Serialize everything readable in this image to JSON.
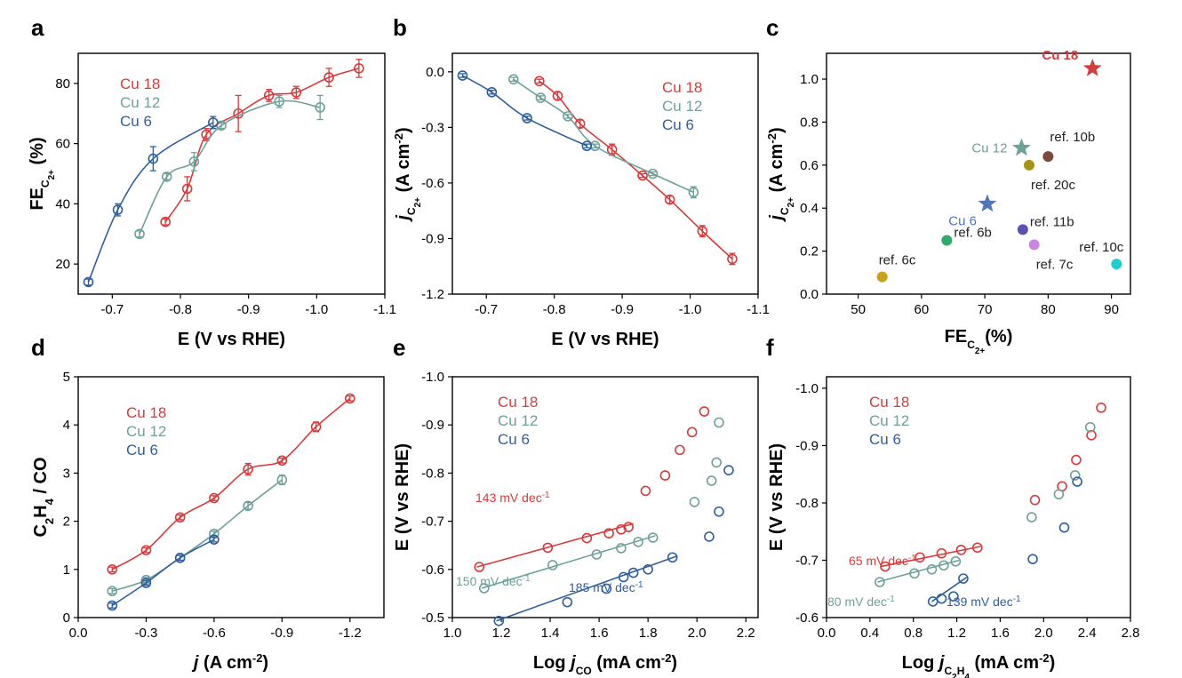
{
  "colors": {
    "cu18": "#d93a3a",
    "cu12": "#6ea19a",
    "cu6": "#2f5f9e"
  },
  "chart_data": [
    {
      "id": "a",
      "type": "line",
      "panel_label": "a",
      "xlabel": "E (V vs RHE)",
      "ylabel_main": "FE",
      "ylabel_sub": "C2+",
      "ylabel_unit": "(%)",
      "xlim": [
        -0.65,
        -1.1
      ],
      "ylim": [
        10,
        90
      ],
      "xticks": [
        -0.7,
        -0.8,
        -0.9,
        -1.0,
        -1.1
      ],
      "xtick_labels": [
        "-0.7",
        "-0.8",
        "-0.9",
        "-1.0",
        "-1.1"
      ],
      "yticks": [
        20,
        40,
        60,
        80
      ],
      "ytick_labels": [
        "20",
        "40",
        "60",
        "80"
      ],
      "legend": [
        "Cu 18",
        "Cu 12",
        "Cu 6"
      ],
      "series": [
        {
          "name": "Cu 18",
          "color": "cu18",
          "x": [
            -0.778,
            -0.81,
            -0.838,
            -0.885,
            -0.93,
            -0.97,
            -1.018,
            -1.062
          ],
          "y": [
            34,
            45,
            63,
            70,
            76,
            77,
            82,
            85
          ],
          "err": [
            1,
            4,
            2,
            6,
            2,
            2,
            3,
            3
          ]
        },
        {
          "name": "Cu 12",
          "color": "cu12",
          "x": [
            -0.74,
            -0.78,
            -0.82,
            -0.86,
            -0.945,
            -1.005
          ],
          "y": [
            30,
            49,
            54,
            66,
            74,
            72
          ],
          "err": [
            1,
            1,
            3,
            1,
            2,
            4
          ]
        },
        {
          "name": "Cu 6",
          "color": "cu6",
          "x": [
            -0.665,
            -0.708,
            -0.76,
            -0.848
          ],
          "y": [
            14,
            38,
            55,
            67
          ],
          "err": [
            1,
            2,
            4,
            2
          ]
        }
      ]
    },
    {
      "id": "b",
      "type": "line",
      "panel_label": "b",
      "xlabel": "E (V vs RHE)",
      "ylabel_main": "j",
      "ylabel_sub": "C2+",
      "ylabel_unit": "(A cm-2)",
      "xlim": [
        -0.65,
        -1.1
      ],
      "ylim": [
        -1.2,
        0.1
      ],
      "xticks": [
        -0.7,
        -0.8,
        -0.9,
        -1.0,
        -1.1
      ],
      "xtick_labels": [
        "-0.7",
        "-0.8",
        "-0.9",
        "-1.0",
        "-1.1"
      ],
      "yticks": [
        0.0,
        -0.3,
        -0.6,
        -0.9,
        -1.2
      ],
      "ytick_labels": [
        "0.0",
        "-0.3",
        "-0.6",
        "-0.9",
        "-1.2"
      ],
      "legend": [
        "Cu 18",
        "Cu 12",
        "Cu 6"
      ],
      "series": [
        {
          "name": "Cu 18",
          "color": "cu18",
          "x": [
            -0.778,
            -0.805,
            -0.838,
            -0.885,
            -0.93,
            -0.97,
            -1.018,
            -1.062
          ],
          "y": [
            -0.05,
            -0.13,
            -0.28,
            -0.42,
            -0.56,
            -0.69,
            -0.86,
            -1.01
          ],
          "err": [
            0.01,
            0.02,
            0.02,
            0.03,
            0.01,
            0.02,
            0.03,
            0.03
          ]
        },
        {
          "name": "Cu 12",
          "color": "cu12",
          "x": [
            -0.74,
            -0.78,
            -0.82,
            -0.86,
            -0.945,
            -1.005
          ],
          "y": [
            -0.04,
            -0.14,
            -0.24,
            -0.4,
            -0.55,
            -0.65
          ],
          "err": [
            0.01,
            0.01,
            0.01,
            0.01,
            0.01,
            0.03
          ]
        },
        {
          "name": "Cu 6",
          "color": "cu6",
          "x": [
            -0.665,
            -0.708,
            -0.76,
            -0.848
          ],
          "y": [
            -0.02,
            -0.11,
            -0.25,
            -0.4
          ],
          "err": [
            0.01,
            0.01,
            0.01,
            0.01
          ]
        }
      ]
    },
    {
      "id": "c",
      "type": "scatter",
      "panel_label": "c",
      "xlabel_main": "FE",
      "xlabel_sub": "C2+",
      "xlabel_unit": "(%)",
      "ylabel_main": "j",
      "ylabel_sub": "C2+",
      "ylabel_unit": "(A cm-2)",
      "xlim": [
        45,
        93
      ],
      "ylim": [
        0,
        1.12
      ],
      "xticks": [
        50,
        60,
        70,
        80,
        90
      ],
      "xtick_labels": [
        "50",
        "60",
        "70",
        "80",
        "90"
      ],
      "yticks": [
        0.0,
        0.2,
        0.4,
        0.6,
        0.8,
        1.0
      ],
      "ytick_labels": [
        "0.0",
        "0.2",
        "0.4",
        "0.6",
        "0.8",
        "1.0"
      ],
      "points": [
        {
          "label": "Cu 18",
          "x": 87,
          "y": 1.05,
          "color": "#d93a3a",
          "marker": "star",
          "label_pos": "left"
        },
        {
          "label": "Cu 12",
          "x": 75.8,
          "y": 0.68,
          "color": "#6ea19a",
          "marker": "star",
          "label_pos": "left"
        },
        {
          "label": "Cu 6",
          "x": 70.4,
          "y": 0.42,
          "color": "#4f77b8",
          "marker": "star",
          "label_pos": "below-left"
        },
        {
          "label": "ref. 10b",
          "x": 80,
          "y": 0.64,
          "color": "#7a4a3a",
          "marker": "circle",
          "label_pos": "above-right"
        },
        {
          "label": "ref. 20c",
          "x": 77,
          "y": 0.6,
          "color": "#a89414",
          "marker": "circle",
          "label_pos": "below"
        },
        {
          "label": "ref. 11b",
          "x": 76,
          "y": 0.3,
          "color": "#5a52b5",
          "marker": "circle",
          "label_pos": "above-right"
        },
        {
          "label": "ref. 7c",
          "x": 77.8,
          "y": 0.23,
          "color": "#c787e0",
          "marker": "circle",
          "label_pos": "below"
        },
        {
          "label": "ref. 6b",
          "x": 64,
          "y": 0.25,
          "color": "#2eaa6a",
          "marker": "circle",
          "label_pos": "above-right"
        },
        {
          "label": "ref. 6c",
          "x": 53.8,
          "y": 0.08,
          "color": "#c9a21a",
          "marker": "circle",
          "label_pos": "above"
        },
        {
          "label": "ref. 10c",
          "x": 90.8,
          "y": 0.14,
          "color": "#1ecfcf",
          "marker": "circle",
          "label_pos": "above-left"
        }
      ]
    },
    {
      "id": "d",
      "type": "line",
      "panel_label": "d",
      "xlabel_main": "j",
      "xlabel_unit": "(A cm-2)",
      "ylabel": "C2H4 / CO",
      "xlim": [
        0,
        -1.35
      ],
      "ylim": [
        0,
        5
      ],
      "xticks": [
        0,
        -0.3,
        -0.6,
        -0.9,
        -1.2
      ],
      "xtick_labels": [
        "0.0",
        "-0.3",
        "-0.6",
        "-0.9",
        "-1.2"
      ],
      "yticks": [
        0,
        1,
        2,
        3,
        4,
        5
      ],
      "ytick_labels": [
        "0",
        "1",
        "2",
        "3",
        "4",
        "5"
      ],
      "legend": [
        "Cu 18",
        "Cu 12",
        "Cu 6"
      ],
      "series": [
        {
          "name": "Cu 18",
          "color": "cu18",
          "x": [
            -0.15,
            -0.3,
            -0.45,
            -0.6,
            -0.75,
            -0.9,
            -1.05,
            -1.2
          ],
          "y": [
            1.0,
            1.4,
            2.08,
            2.48,
            3.08,
            3.26,
            3.96,
            4.55
          ],
          "err": [
            0.05,
            0.05,
            0.05,
            0.05,
            0.12,
            0.05,
            0.1,
            0.05
          ]
        },
        {
          "name": "Cu 12",
          "color": "cu12",
          "x": [
            -0.15,
            -0.3,
            -0.45,
            -0.6,
            -0.75,
            -0.9
          ],
          "y": [
            0.55,
            0.78,
            1.24,
            1.74,
            2.32,
            2.86
          ],
          "err": [
            0.05,
            0.05,
            0.05,
            0.05,
            0.07,
            0.1
          ]
        },
        {
          "name": "Cu 6",
          "color": "cu6",
          "x": [
            -0.15,
            -0.3,
            -0.45,
            -0.6
          ],
          "y": [
            0.25,
            0.72,
            1.24,
            1.62
          ],
          "err": [
            0.05,
            0.05,
            0.05,
            0.05
          ]
        }
      ]
    },
    {
      "id": "e",
      "type": "scatter",
      "panel_label": "e",
      "xlabel_main": "Log j",
      "xlabel_sub": "CO",
      "xlabel_unit": "(mA cm-2)",
      "ylabel": "E (V vs RHE)",
      "xlim": [
        1.0,
        2.25
      ],
      "ylim": [
        -0.5,
        -1.0
      ],
      "xticks": [
        1.0,
        1.2,
        1.4,
        1.6,
        1.8,
        2.0,
        2.2
      ],
      "xtick_labels": [
        "1.0",
        "1.2",
        "1.4",
        "1.6",
        "1.8",
        "2.0",
        "2.2"
      ],
      "yticks": [
        -0.5,
        -0.6,
        -0.7,
        -0.8,
        -0.9,
        -1.0
      ],
      "ytick_labels": [
        "-0.5",
        "-0.6",
        "-0.7",
        "-0.8",
        "-0.9",
        "-1.0"
      ],
      "legend": [
        "Cu 18",
        "Cu 12",
        "Cu 6"
      ],
      "series": [
        {
          "name": "Cu 18",
          "color": "cu18",
          "x": [
            1.11,
            1.39,
            1.55,
            1.64,
            1.69,
            1.72,
            1.79,
            1.87,
            1.93,
            1.98,
            2.03
          ],
          "y": [
            -0.605,
            -0.645,
            -0.665,
            -0.675,
            -0.683,
            -0.688,
            -0.763,
            -0.795,
            -0.848,
            -0.885,
            -0.928
          ],
          "fit": {
            "x": [
              1.1,
              1.74
            ],
            "y": [
              -0.605,
              -0.695
            ]
          },
          "slope_label": "143 mV dec-1"
        },
        {
          "name": "Cu 12",
          "color": "cu12",
          "x": [
            1.13,
            1.41,
            1.59,
            1.69,
            1.76,
            1.82,
            1.99,
            2.06,
            2.08,
            2.09
          ],
          "y": [
            -0.561,
            -0.609,
            -0.631,
            -0.644,
            -0.657,
            -0.666,
            -0.74,
            -0.784,
            -0.822,
            -0.905
          ],
          "fit": {
            "x": [
              1.12,
              1.83
            ],
            "y": [
              -0.561,
              -0.67
            ]
          },
          "slope_label": "150 mV dec-1"
        },
        {
          "name": "Cu 6",
          "color": "cu6",
          "x": [
            1.19,
            1.47,
            1.63,
            1.7,
            1.74,
            1.8,
            1.9,
            2.05,
            2.09,
            2.13
          ],
          "y": [
            -0.493,
            -0.532,
            -0.56,
            -0.584,
            -0.593,
            -0.6,
            -0.625,
            -0.668,
            -0.72,
            -0.806
          ],
          "fit": {
            "x": [
              1.18,
              1.92
            ],
            "y": [
              -0.493,
              -0.628
            ]
          },
          "slope_label": "185 mV dec-1"
        }
      ]
    },
    {
      "id": "f",
      "type": "scatter",
      "panel_label": "f",
      "xlabel_main": "Log j",
      "xlabel_sub": "C2H4",
      "xlabel_unit": "(mA cm-2)",
      "ylabel": "E (V vs RHE)",
      "xlim": [
        0.0,
        2.8
      ],
      "ylim": [
        -0.6,
        -1.02
      ],
      "xticks": [
        0.0,
        0.4,
        0.8,
        1.2,
        1.6,
        2.0,
        2.4,
        2.8
      ],
      "xtick_labels": [
        "0.0",
        "0.4",
        "0.8",
        "1.2",
        "1.6",
        "2.0",
        "2.4",
        "2.8"
      ],
      "yticks": [
        -0.6,
        -0.7,
        -0.8,
        -0.9,
        -1.0
      ],
      "ytick_labels": [
        "-0.6",
        "-0.7",
        "-0.8",
        "-0.9",
        "-1.0"
      ],
      "legend": [
        "Cu 18",
        "Cu 12",
        "Cu 6"
      ],
      "series": [
        {
          "name": "Cu 18",
          "color": "cu18",
          "x": [
            0.54,
            0.86,
            1.06,
            1.24,
            1.39,
            1.92,
            2.17,
            2.3,
            2.44,
            2.53
          ],
          "y": [
            -0.689,
            -0.705,
            -0.712,
            -0.718,
            -0.722,
            -0.805,
            -0.829,
            -0.875,
            -0.918,
            -0.966
          ],
          "fit": {
            "x": [
              0.5,
              1.42
            ],
            "y": [
              -0.689,
              -0.724
            ]
          },
          "slope_label": "65 mV dec-1"
        },
        {
          "name": "Cu 12",
          "color": "cu12",
          "x": [
            0.49,
            0.81,
            0.97,
            1.08,
            1.19,
            1.89,
            2.14,
            2.29,
            2.43
          ],
          "y": [
            -0.662,
            -0.677,
            -0.684,
            -0.691,
            -0.698,
            -0.775,
            -0.815,
            -0.848,
            -0.932
          ],
          "fit": {
            "x": [
              0.47,
              1.22
            ],
            "y": [
              -0.662,
              -0.7
            ]
          },
          "slope_label": "80 mV dec-1"
        },
        {
          "name": "Cu 6",
          "color": "cu6",
          "x": [
            0.98,
            1.06,
            1.17,
            1.26,
            1.9,
            2.19,
            2.31
          ],
          "y": [
            -0.628,
            -0.633,
            -0.637,
            -0.668,
            -0.702,
            -0.757,
            -0.837
          ],
          "fit": {
            "x": [
              0.97,
              1.29
            ],
            "y": [
              -0.628,
              -0.67
            ]
          },
          "slope_label": "139 mV dec-1"
        }
      ]
    }
  ]
}
